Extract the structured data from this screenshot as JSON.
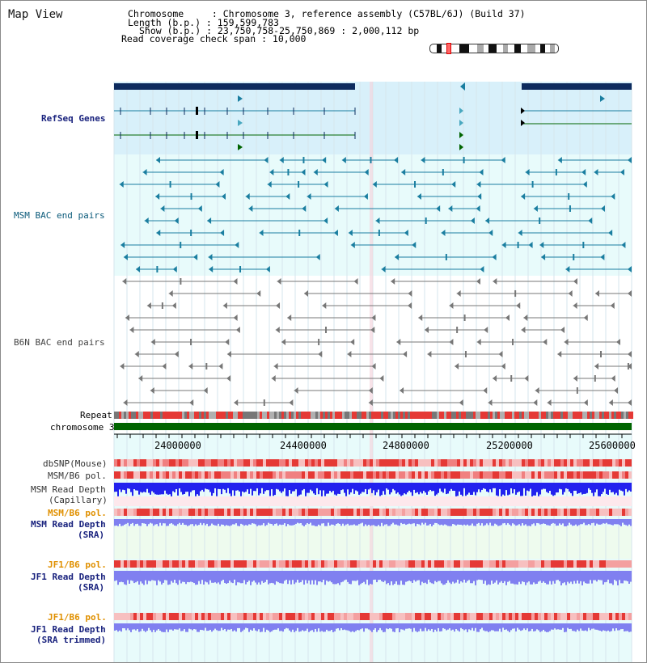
{
  "header": {
    "title": "Map View",
    "info_lines": [
      "Chromosome     : Chromosome 3, reference assembly (C57BL/6J) (Build 37)",
      "Length (b.p.) : 159,599,783",
      "Show (b.p.) : 23,750,758-25,750,869 : 2,000,112 bp",
      "Read coverage check span : 10,000"
    ]
  },
  "tracks": {
    "refseq_label": "RefSeq Genes",
    "msm_bac_label": "MSM BAC end pairs",
    "b6n_bac_label": "B6N BAC end pairs",
    "repeat_label": "Repeat",
    "chromosome_label": "chromosome 3",
    "dbsnp_label": "dbSNP(Mouse)",
    "msm_b6_pol_label_1": "MSM/B6 pol.",
    "msm_read_depth_cap_label": "MSM Read Depth",
    "msm_read_depth_cap_sub": "(Capillary)",
    "msm_b6_pol_label_2": "MSM/B6 pol.",
    "msm_read_depth_sra_label": "MSM Read Depth",
    "msm_read_depth_sra_sub": "(SRA)",
    "jf1_b6_pol_label_1": "JF1/B6 pol.",
    "jf1_read_depth_sra_label": "JF1 Read Depth",
    "jf1_read_depth_sra_sub": "(SRA)",
    "jf1_b6_pol_label_2": "JF1/B6 pol.",
    "jf1_read_depth_trim_label": "JF1 Read Depth",
    "jf1_read_depth_trim_sub": "(SRA trimmed)"
  },
  "axis": {
    "ticks": [
      "24000000",
      "24400000",
      "24800000",
      "25200000",
      "25600000"
    ]
  },
  "colors": {
    "refseq_bg": "#d8f0fa",
    "track_bg": "#e8fbfb",
    "gene_dark": "#0d2b5e",
    "msm_feature": "#1a7ea0",
    "b6n_feature": "#777777",
    "chromosome": "#006400",
    "snp_red": "#e53935",
    "depth_blue": "#2222ee",
    "depth_light": "#8080f0"
  }
}
